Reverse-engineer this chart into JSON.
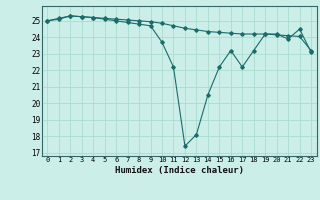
{
  "title": "",
  "xlabel": "Humidex (Indice chaleur)",
  "ylabel": "",
  "background_color": "#cceee8",
  "grid_color": "#aaddcc",
  "line_color": "#1a6b6b",
  "xlim": [
    -0.5,
    23.5
  ],
  "ylim": [
    16.8,
    25.9
  ],
  "yticks": [
    17,
    18,
    19,
    20,
    21,
    22,
    23,
    24,
    25
  ],
  "xticks": [
    0,
    1,
    2,
    3,
    4,
    5,
    6,
    7,
    8,
    9,
    10,
    11,
    12,
    13,
    14,
    15,
    16,
    17,
    18,
    19,
    20,
    21,
    22,
    23
  ],
  "line1_x": [
    0,
    1,
    2,
    3,
    4,
    5,
    6,
    7,
    8,
    9,
    10,
    11,
    12,
    13,
    14,
    15,
    16,
    17,
    18,
    19,
    20,
    21,
    22,
    23
  ],
  "line1_y": [
    25.0,
    25.1,
    25.3,
    25.25,
    25.2,
    25.15,
    25.1,
    25.05,
    25.0,
    24.95,
    24.85,
    24.7,
    24.55,
    24.45,
    24.35,
    24.3,
    24.25,
    24.2,
    24.2,
    24.2,
    24.15,
    24.1,
    24.05,
    23.2
  ],
  "line2_x": [
    0,
    1,
    2,
    3,
    4,
    5,
    6,
    7,
    8,
    9,
    10,
    11,
    12,
    13,
    14,
    15,
    16,
    17,
    18,
    19,
    20,
    21,
    22,
    23
  ],
  "line2_y": [
    25.0,
    25.15,
    25.3,
    25.25,
    25.2,
    25.1,
    25.0,
    24.9,
    24.8,
    24.7,
    23.7,
    22.2,
    17.4,
    18.1,
    20.5,
    22.2,
    23.2,
    22.2,
    23.2,
    24.2,
    24.2,
    23.9,
    24.5,
    23.1
  ],
  "xlabel_fontsize": 6.5,
  "ytick_fontsize": 5.5,
  "xtick_fontsize": 5.0
}
